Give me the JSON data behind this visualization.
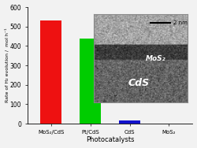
{
  "categories": [
    "MoS₂/CdS",
    "Pt/CdS",
    "CdS",
    "MoS₂"
  ],
  "values": [
    530,
    440,
    18,
    0
  ],
  "bar_colors": [
    "#ee1111",
    "#00cc00",
    "#1111cc",
    "#1111cc"
  ],
  "bar_width": 0.55,
  "ylabel": "Rate of H₂ evolution /  mol h⁻¹",
  "xlabel": "Photocatalysts",
  "ylim": [
    0,
    600
  ],
  "yticks": [
    0,
    100,
    200,
    300,
    400,
    500,
    600
  ],
  "background_color": "#f2f2f2",
  "inset_mos2_label": "MoS₂",
  "inset_cds_label": "CdS",
  "inset_scale_label": "2 nm",
  "figsize": [
    2.5,
    1.88
  ],
  "dpi": 100
}
